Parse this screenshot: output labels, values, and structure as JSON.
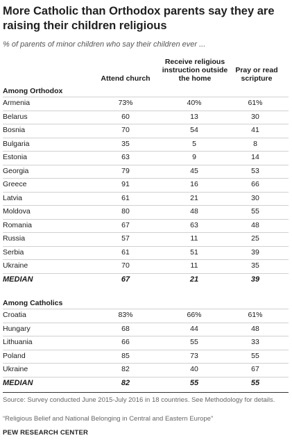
{
  "title": "More Catholic than Orthodox parents say they are raising their children religious",
  "subtitle": "% of parents of minor children who say their children ever ...",
  "columns": [
    "Attend church",
    "Receive religious instruction outside the home",
    "Pray or read scripture"
  ],
  "chart_data": {
    "type": "table",
    "sections": [
      {
        "label": "Among Orthodox",
        "rows": [
          {
            "country": "Armenia",
            "values": [
              "73%",
              "40%",
              "61%"
            ]
          },
          {
            "country": "Belarus",
            "values": [
              "60",
              "13",
              "30"
            ]
          },
          {
            "country": "Bosnia",
            "values": [
              "70",
              "54",
              "41"
            ]
          },
          {
            "country": "Bulgaria",
            "values": [
              "35",
              "5",
              "8"
            ]
          },
          {
            "country": "Estonia",
            "values": [
              "63",
              "9",
              "14"
            ]
          },
          {
            "country": "Georgia",
            "values": [
              "79",
              "45",
              "53"
            ]
          },
          {
            "country": "Greece",
            "values": [
              "91",
              "16",
              "66"
            ]
          },
          {
            "country": "Latvia",
            "values": [
              "61",
              "21",
              "30"
            ]
          },
          {
            "country": "Moldova",
            "values": [
              "80",
              "48",
              "55"
            ]
          },
          {
            "country": "Romania",
            "values": [
              "67",
              "63",
              "48"
            ]
          },
          {
            "country": "Russia",
            "values": [
              "57",
              "11",
              "25"
            ]
          },
          {
            "country": "Serbia",
            "values": [
              "61",
              "51",
              "39"
            ]
          },
          {
            "country": "Ukraine",
            "values": [
              "70",
              "11",
              "35"
            ]
          }
        ],
        "median": {
          "label": "MEDIAN",
          "values": [
            "67",
            "21",
            "39"
          ]
        }
      },
      {
        "label": "Among Catholics",
        "rows": [
          {
            "country": "Croatia",
            "values": [
              "83%",
              "66%",
              "61%"
            ]
          },
          {
            "country": "Hungary",
            "values": [
              "68",
              "44",
              "48"
            ]
          },
          {
            "country": "Lithuania",
            "values": [
              "66",
              "55",
              "33"
            ]
          },
          {
            "country": "Poland",
            "values": [
              "85",
              "73",
              "55"
            ]
          },
          {
            "country": "Ukraine",
            "values": [
              "82",
              "40",
              "67"
            ]
          }
        ],
        "median": {
          "label": "MEDIAN",
          "values": [
            "82",
            "55",
            "55"
          ]
        }
      }
    ]
  },
  "source": "Source: Survey conducted June 2015-July 2016 in 18 countries. See Methodology for details.",
  "report": "“Religious Belief and National Belonging in Central and Eastern Europe”",
  "brand": "PEW RESEARCH CENTER"
}
